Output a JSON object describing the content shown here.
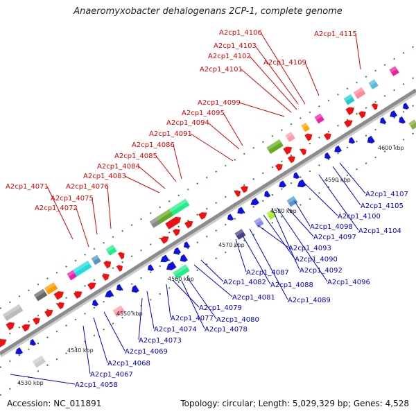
{
  "title": "Anaeromyxobacter dehalogenans 2CP-1, complete genome",
  "footer": {
    "accession": "Accession: NC_011891",
    "summary": "Topology: circular; Length: 5,029,329 bp; Genes: 4,528"
  },
  "colors": {
    "forward_label": "#dd0000",
    "reverse_label": "#0000cc",
    "forward_gene": "#ee1111",
    "reverse_gene": "#1111dd",
    "backbone": "#999999"
  },
  "ticks": [
    "4530 kbp",
    "4540 kbp",
    "4550 kbp",
    "4560 kbp",
    "4570 kbp",
    "4580 kbp",
    "4590 kbp",
    "4600 kbp"
  ],
  "forward_labels": [
    "A2cp1_4071",
    "A2cp1_4075",
    "A2cp1_4072",
    "A2cp1_4076",
    "A2cp1_4083",
    "A2cp1_4084",
    "A2cp1_4085",
    "A2cp1_4086",
    "A2cp1_4091",
    "A2cp1_4094",
    "A2cp1_4095",
    "A2cp1_4099",
    "A2cp1_4101",
    "A2cp1_4102",
    "A2cp1_4103",
    "A2cp1_4106",
    "A2cp1_4109",
    "A2cp1_4115"
  ],
  "reverse_labels": [
    "A2cp1_4058",
    "A2cp1_4067",
    "A2cp1_4068",
    "A2cp1_4069",
    "A2cp1_4073",
    "A2cp1_4074",
    "A2cp1_4077",
    "A2cp1_4078",
    "A2cp1_4079",
    "A2cp1_4080",
    "A2cp1_4081",
    "A2cp1_4082",
    "A2cp1_4087",
    "A2cp1_4088",
    "A2cp1_4089",
    "A2cp1_4090",
    "A2cp1_4092",
    "A2cp1_4093",
    "A2cp1_4096",
    "A2cp1_4097",
    "A2cp1_4098",
    "A2cp1_4100",
    "A2cp1_4104",
    "A2cp1_4105",
    "A2cp1_4107"
  ]
}
